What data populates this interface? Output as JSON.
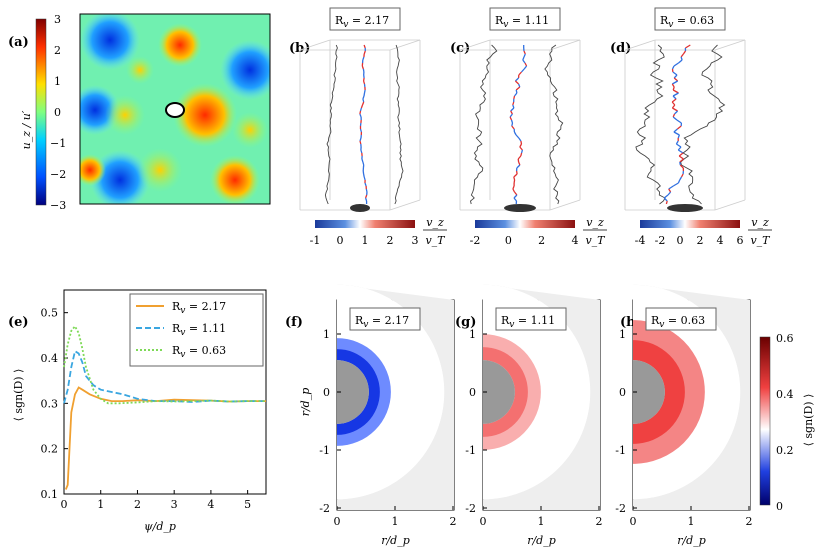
{
  "panel_labels": {
    "a": "(a)",
    "b": "(b)",
    "c": "(c)",
    "d": "(d)",
    "e": "(e)",
    "f": "(f)",
    "g": "(g)",
    "h": "(h)"
  },
  "panel_a": {
    "ylabel": "u_z / u′",
    "colorbar_ticks": [
      "3",
      "2",
      "1",
      "0",
      "−1",
      "−2",
      "−3"
    ]
  },
  "panels_bcd": [
    {
      "title": "R_v = 2.17",
      "title_main": "R",
      "title_sub": "v",
      "title_val": " = 2.17",
      "cbar_ticks": [
        "-1",
        "0",
        "1",
        "2",
        "3"
      ],
      "cbar_num": "v_z",
      "cbar_den": "v_T"
    },
    {
      "title": "R_v = 1.11",
      "title_main": "R",
      "title_sub": "v",
      "title_val": " = 1.11",
      "cbar_ticks": [
        "-2",
        "0",
        "2",
        "4"
      ],
      "cbar_num": "v_z",
      "cbar_den": "v_T"
    },
    {
      "title": "R_v = 0.63",
      "title_main": "R",
      "title_sub": "v",
      "title_val": " = 0.63",
      "cbar_ticks": [
        "-4",
        "-2",
        "0",
        "2",
        "4",
        "6"
      ],
      "cbar_num": "v_z",
      "cbar_den": "v_T"
    }
  ],
  "panel_e": {
    "ylabel": "⟨ sgn(D) ⟩",
    "xlabel": "ψ/d_p",
    "x_ticks": [
      "0",
      "1",
      "2",
      "3",
      "4",
      "5"
    ],
    "y_ticks": [
      "0.5",
      "0.4",
      "0.3",
      "0.2",
      "0.1"
    ],
    "legend": [
      {
        "main": "R",
        "sub": "v",
        "val": " = 2.17",
        "color": "#f0a030",
        "dash": "solid"
      },
      {
        "main": "R",
        "sub": "v",
        "val": " = 1.11",
        "color": "#3aa6e0",
        "dash": "dashed"
      },
      {
        "main": "R",
        "sub": "v",
        "val": " = 0.63",
        "color": "#7ed957",
        "dash": "dotted"
      }
    ]
  },
  "panels_fgh": [
    {
      "main": "R",
      "sub": "v",
      "val": " = 2.17"
    },
    {
      "main": "R",
      "sub": "v",
      "val": " = 1.11"
    },
    {
      "main": "R",
      "sub": "v",
      "val": " = 0.63"
    }
  ],
  "panel_fgh_axes": {
    "ylabel": "r/d_p",
    "xlabel": "r/d_p",
    "y_ticks": [
      "1",
      "0",
      "-1",
      "-2"
    ],
    "x_ticks": [
      "0",
      "1",
      "2"
    ],
    "cbar_ticks": [
      "0.6",
      "0.4",
      "0.2",
      "0"
    ],
    "cbar_label": "⟨ sgn(D) ⟩"
  },
  "chart_data": {
    "type": "line",
    "title": "",
    "xlabel": "ψ/d_p",
    "ylabel": "⟨ sgn(D) ⟩",
    "xlim": [
      0,
      5.5
    ],
    "ylim": [
      0.1,
      0.55
    ],
    "series": [
      {
        "name": "R_v = 2.17",
        "x": [
          0.05,
          0.1,
          0.15,
          0.2,
          0.3,
          0.4,
          0.5,
          0.7,
          1.0,
          1.3,
          1.6,
          2.0,
          2.5,
          3.0,
          3.5,
          4.0,
          4.5,
          5.0,
          5.5
        ],
        "y": [
          0.11,
          0.12,
          0.2,
          0.28,
          0.32,
          0.335,
          0.33,
          0.32,
          0.31,
          0.305,
          0.305,
          0.307,
          0.305,
          0.308,
          0.307,
          0.306,
          0.304,
          0.305,
          0.305
        ]
      },
      {
        "name": "R_v = 1.11",
        "x": [
          0.0,
          0.1,
          0.2,
          0.3,
          0.4,
          0.5,
          0.6,
          0.8,
          1.0,
          1.3,
          1.6,
          2.0,
          2.5,
          3.0,
          3.5,
          4.0,
          4.5,
          5.0,
          5.5
        ],
        "y": [
          0.3,
          0.33,
          0.38,
          0.415,
          0.41,
          0.39,
          0.36,
          0.34,
          0.33,
          0.325,
          0.32,
          0.31,
          0.305,
          0.305,
          0.303,
          0.306,
          0.304,
          0.305,
          0.305
        ]
      },
      {
        "name": "R_v = 0.63",
        "x": [
          0.0,
          0.1,
          0.2,
          0.3,
          0.4,
          0.5,
          0.6,
          0.8,
          1.0,
          1.2,
          1.5,
          2.0,
          2.5,
          3.0,
          3.5,
          4.0,
          4.5,
          5.0,
          5.5
        ],
        "y": [
          0.38,
          0.43,
          0.46,
          0.47,
          0.455,
          0.42,
          0.38,
          0.33,
          0.31,
          0.3,
          0.3,
          0.302,
          0.305,
          0.304,
          0.305,
          0.306,
          0.304,
          0.305,
          0.305
        ]
      }
    ]
  }
}
